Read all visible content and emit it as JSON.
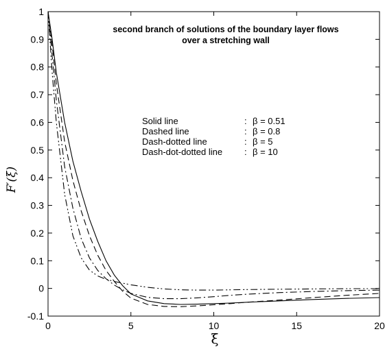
{
  "chart_data": {
    "type": "line",
    "title_lines": [
      "second branch of solutions of the boundary layer flows",
      "over a stretching wall"
    ],
    "xlabel": "ξ",
    "ylabel": "F′(ξ)",
    "xlim": [
      0,
      20
    ],
    "ylim": [
      -0.1,
      1.0
    ],
    "x_ticks": [
      0,
      5,
      10,
      15,
      20
    ],
    "y_ticks": [
      -0.1,
      0,
      0.1,
      0.2,
      0.3,
      0.4,
      0.5,
      0.6,
      0.7,
      0.8,
      0.9,
      1.0
    ],
    "x_tick_labels": [
      "0",
      "5",
      "10",
      "15",
      "20"
    ],
    "y_tick_labels": [
      "-0.1",
      "0",
      "0.1",
      "0.2",
      "0.3",
      "0.4",
      "0.5",
      "0.6",
      "0.7",
      "0.8",
      "0.9",
      "1"
    ],
    "grid": false,
    "legend_position": "center",
    "legend": [
      {
        "label": "Solid line",
        "sep": ":",
        "value": "β = 0.51"
      },
      {
        "label": "Dashed line",
        "sep": ":",
        "value": "β = 0.8"
      },
      {
        "label": "Dash-dotted line",
        "sep": ":",
        "value": "β = 5"
      },
      {
        "label": "Dash-dot-dotted line",
        "sep": ":",
        "value": "β = 10"
      }
    ],
    "series": [
      {
        "style": "solid",
        "x": [
          0,
          0.25,
          0.5,
          1,
          1.5,
          2,
          2.5,
          3,
          3.5,
          4,
          4.5,
          5,
          6,
          7,
          8,
          9,
          10,
          11,
          12,
          14,
          16,
          18,
          20
        ],
        "y": [
          1.0,
          0.9,
          0.78,
          0.6,
          0.46,
          0.35,
          0.25,
          0.17,
          0.1,
          0.048,
          0.01,
          -0.02,
          -0.045,
          -0.055,
          -0.058,
          -0.057,
          -0.055,
          -0.053,
          -0.05,
          -0.045,
          -0.04,
          -0.036,
          -0.033
        ]
      },
      {
        "style": "dashed",
        "x": [
          0,
          0.25,
          0.5,
          1,
          1.5,
          2,
          2.5,
          3,
          3.5,
          4,
          4.5,
          5,
          6,
          7,
          8,
          9,
          10,
          11,
          12,
          14,
          16,
          18,
          20
        ],
        "y": [
          1.0,
          0.88,
          0.74,
          0.53,
          0.39,
          0.28,
          0.19,
          0.12,
          0.065,
          0.025,
          -0.01,
          -0.035,
          -0.058,
          -0.065,
          -0.066,
          -0.063,
          -0.059,
          -0.055,
          -0.05,
          -0.042,
          -0.033,
          -0.025,
          -0.018
        ]
      },
      {
        "style": "dashdot",
        "x": [
          0,
          0.25,
          0.5,
          1,
          1.5,
          2,
          2.5,
          3,
          3.5,
          4,
          4.5,
          5,
          6,
          7,
          8,
          9,
          10,
          11,
          12,
          14,
          16,
          18,
          20
        ],
        "y": [
          1.0,
          0.84,
          0.68,
          0.44,
          0.29,
          0.18,
          0.11,
          0.065,
          0.035,
          0.012,
          -0.005,
          -0.018,
          -0.032,
          -0.037,
          -0.037,
          -0.034,
          -0.03,
          -0.025,
          -0.021,
          -0.015,
          -0.011,
          -0.008,
          -0.006
        ]
      },
      {
        "style": "dashdotdot",
        "x": [
          0,
          0.25,
          0.5,
          1,
          1.5,
          2,
          2.5,
          3,
          3.5,
          4,
          4.5,
          5,
          6,
          7,
          8,
          9,
          10,
          11,
          12,
          14,
          16,
          18,
          20
        ],
        "y": [
          1.0,
          0.78,
          0.6,
          0.34,
          0.19,
          0.11,
          0.066,
          0.045,
          0.033,
          0.025,
          0.019,
          0.013,
          0.004,
          -0.002,
          -0.005,
          -0.006,
          -0.006,
          -0.005,
          -0.004,
          -0.003,
          -0.002,
          -0.001,
          -0.001
        ]
      }
    ]
  }
}
